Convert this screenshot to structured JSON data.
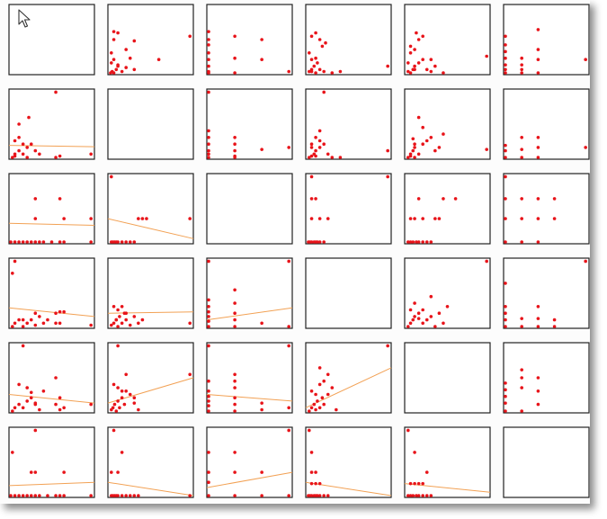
{
  "chart_data": {
    "type": "scatter-matrix",
    "title": "",
    "variables": [
      "",
      "",
      "",
      "",
      "",
      ""
    ],
    "grid": false,
    "colors": {
      "point": "#e8141a",
      "trend": "#f2a154",
      "border": "#222222",
      "panel": "#ffffff"
    },
    "cells": {
      "0-1": {
        "x": [
          0.01,
          0.03,
          0.05,
          0.08,
          0.1,
          0.15,
          0.2,
          0.3,
          0.02,
          0.02,
          0.05,
          0.1,
          0.05,
          0.3,
          0.6,
          0.98,
          0.1,
          0.2,
          0.25,
          0.05
        ],
        "y": [
          0.0,
          0.02,
          0.0,
          0.05,
          0.1,
          0.02,
          0.08,
          0.05,
          0.15,
          0.3,
          0.2,
          0.12,
          0.5,
          0.48,
          0.2,
          0.55,
          0.6,
          0.35,
          0.22,
          0.62
        ]
      },
      "0-2": {
        "x": [
          0,
          0,
          0,
          0,
          0,
          0,
          0,
          0,
          0.32,
          0.32,
          0.32,
          0.65,
          0.65,
          0.98
        ],
        "y": [
          0,
          0.1,
          0.2,
          0.3,
          0.42,
          0.5,
          0.62,
          0.02,
          0.0,
          0.22,
          0.55,
          0.2,
          0.5,
          0.02
        ]
      },
      "0-3": {
        "x": [
          0.02,
          0.05,
          0.08,
          0.1,
          0.15,
          0.2,
          0.3,
          0.4,
          0.05,
          0.1,
          0.12,
          0.18,
          0.22,
          0.05,
          0.1,
          0.15,
          0.02,
          0.98,
          0.05
        ],
        "y": [
          0.02,
          0.05,
          0.1,
          0.0,
          0.05,
          0.02,
          0.0,
          0.02,
          0.2,
          0.22,
          0.15,
          0.4,
          0.45,
          0.55,
          0.6,
          0.5,
          0.3,
          0.1,
          0.02
        ]
      },
      "0-4": {
        "x": [
          0.02,
          0.05,
          0.08,
          0.1,
          0.15,
          0.2,
          0.25,
          0.3,
          0.35,
          0.45,
          0.05,
          0.1,
          0.15,
          0.2,
          0.12,
          0.3,
          0.05,
          0.98,
          0.02,
          0.1
        ],
        "y": [
          0.02,
          0.0,
          0.05,
          0.1,
          0.15,
          0.2,
          0.05,
          0.02,
          0.1,
          0.0,
          0.3,
          0.35,
          0.5,
          0.55,
          0.6,
          0.2,
          0.4,
          0.25,
          0.15,
          0.05
        ]
      },
      "0-5": {
        "x": [
          0,
          0,
          0,
          0,
          0,
          0,
          0,
          0.2,
          0.2,
          0.2,
          0.2,
          0.4,
          0.4,
          0.4,
          0.4,
          0.98
        ],
        "y": [
          0,
          0.12,
          0.22,
          0.32,
          0.42,
          0.55,
          0.05,
          0,
          0.12,
          0.22,
          0.05,
          0,
          0.2,
          0.35,
          0.65,
          0.2
        ]
      },
      "1-0": {
        "x": [
          0.02,
          0.05,
          0.1,
          0.15,
          0.2,
          0.25,
          0.3,
          0.35,
          0.55,
          0.6,
          0.05,
          0.1,
          0.15,
          0.22,
          0.55,
          0.98,
          0.1,
          0.2,
          0.05
        ],
        "y": [
          0.0,
          0.05,
          0.1,
          0.05,
          0.15,
          0.2,
          0.1,
          0.05,
          0.0,
          0.02,
          0.25,
          0.3,
          0.2,
          0.6,
          0.98,
          0.05,
          0.5,
          0.0,
          0.02
        ],
        "trend": [
          0.18,
          0.16
        ]
      },
      "1-2": {
        "x": [
          0,
          0,
          0,
          0,
          0,
          0,
          0,
          0.32,
          0.32,
          0.32,
          0.32,
          0.65,
          0.98,
          0.32
        ],
        "y": [
          0,
          0.1,
          0.2,
          0.3,
          0.4,
          0.98,
          0.05,
          0,
          0.1,
          0.2,
          0.3,
          0.12,
          0.15,
          0.02
        ]
      },
      "1-3": {
        "x": [
          0.02,
          0.05,
          0.08,
          0.1,
          0.15,
          0.2,
          0.25,
          0.3,
          0.1,
          0.15,
          0.2,
          0.05,
          0.15,
          0.98,
          0.4,
          0.1,
          0.05
        ],
        "y": [
          0.0,
          0.02,
          0.05,
          0.1,
          0.15,
          0.2,
          0.05,
          0.0,
          0.3,
          0.25,
          0.98,
          0.15,
          0.4,
          0.1,
          0.0,
          0.02,
          0.2
        ]
      },
      "1-4": {
        "x": [
          0.02,
          0.05,
          0.08,
          0.1,
          0.15,
          0.2,
          0.25,
          0.3,
          0.35,
          0.4,
          0.45,
          0.05,
          0.1,
          0.15,
          0.2,
          0.98,
          0.1,
          0.08
        ],
        "y": [
          0.0,
          0.05,
          0.1,
          0.15,
          0.05,
          0.2,
          0.25,
          0.3,
          0.1,
          0.15,
          0.35,
          0.02,
          0.2,
          0.6,
          0.45,
          0.12,
          0.0,
          0.28
        ]
      },
      "1-5": {
        "x": [
          0,
          0,
          0,
          0.2,
          0.2,
          0.2,
          0.4,
          0.4,
          0.98,
          0.4
        ],
        "y": [
          0,
          0.1,
          0.18,
          0,
          0.12,
          0.3,
          0,
          0.15,
          0.15,
          0.3
        ]
      },
      "2-0": {
        "x": [
          0,
          0.05,
          0.1,
          0.15,
          0.2,
          0.25,
          0.3,
          0.35,
          0.4,
          0.5,
          0.6,
          0.98,
          0.3,
          0.3,
          0.65,
          0.6,
          0.98,
          0.65
        ],
        "y": [
          0,
          0,
          0,
          0,
          0,
          0,
          0,
          0,
          0,
          0,
          0,
          0,
          0.35,
          0.65,
          0.35,
          0.65,
          0.35,
          0
        ],
        "trend": [
          0.28,
          0.25
        ]
      },
      "2-1": {
        "x": [
          0.02,
          0.04,
          0.06,
          0.08,
          0.1,
          0.15,
          0.2,
          0.25,
          0.3,
          0.35,
          0.4,
          0.45,
          0.02,
          0.98
        ],
        "y": [
          0,
          0,
          0,
          0,
          0,
          0,
          0,
          0,
          0,
          0.35,
          0.35,
          0.35,
          0.98,
          0.35
        ],
        "trend": [
          0.35,
          0.05
        ]
      },
      "2-3": {
        "x": [
          0.01,
          0.03,
          0.05,
          0.08,
          0.1,
          0.12,
          0.15,
          0.2,
          0.05,
          0.15,
          0.25,
          0.05,
          0.1,
          0.05,
          0.98
        ],
        "y": [
          0,
          0,
          0,
          0,
          0,
          0,
          0,
          0,
          0.35,
          0.35,
          0.35,
          0.65,
          0.65,
          0.98,
          0.98
        ]
      },
      "2-4": {
        "x": [
          0.02,
          0.05,
          0.08,
          0.12,
          0.15,
          0.2,
          0.25,
          0.3,
          0.05,
          0.1,
          0.2,
          0.35,
          0.4,
          0.15,
          0.45,
          0.6
        ],
        "y": [
          0,
          0,
          0,
          0,
          0,
          0,
          0,
          0,
          0.35,
          0.35,
          0.35,
          0.35,
          0.35,
          0.65,
          0.65,
          0.65
        ]
      },
      "2-5": {
        "x": [
          0,
          0,
          0,
          0,
          0.2,
          0.2,
          0.2,
          0.4,
          0.4,
          0.4,
          0.6,
          0.6
        ],
        "y": [
          0,
          0.35,
          0.65,
          0.98,
          0,
          0.35,
          0.65,
          0,
          0.35,
          0.65,
          0.35,
          0.65
        ]
      },
      "3-0": {
        "x": [
          0.02,
          0.05,
          0.1,
          0.15,
          0.2,
          0.25,
          0.3,
          0.35,
          0.45,
          0.55,
          0.6,
          0.65,
          0.05,
          0.3,
          0.55,
          0.98,
          0.6,
          0.02,
          0.15,
          0.4
        ],
        "y": [
          0,
          0.05,
          0.1,
          0.0,
          0.05,
          0.1,
          0.02,
          0.15,
          0.1,
          0.2,
          0.05,
          0.22,
          0.98,
          0.2,
          0.05,
          0.02,
          0.22,
          0.8,
          0.1,
          0.05
        ],
        "trend": [
          0.28,
          0.15
        ]
      },
      "3-1": {
        "x": [
          0.02,
          0.05,
          0.08,
          0.1,
          0.12,
          0.15,
          0.18,
          0.2,
          0.25,
          0.3,
          0.35,
          0.4,
          0.05,
          0.1,
          0.15,
          0.2,
          0.98,
          0.08
        ],
        "y": [
          0.02,
          0.05,
          0.1,
          0.0,
          0.15,
          0.05,
          0.2,
          0.1,
          0.02,
          0.15,
          0.05,
          0.1,
          0.3,
          0.25,
          0.3,
          0.2,
          0.05,
          0.1
        ],
        "trend": [
          0.2,
          0.22
        ]
      },
      "3-2": {
        "x": [
          0,
          0,
          0,
          0,
          0,
          0,
          0,
          0.32,
          0.32,
          0.32,
          0.32,
          0.32,
          0.65,
          0.98,
          0.98
        ],
        "y": [
          0,
          0.08,
          0.15,
          0.22,
          0.3,
          0.4,
          0.98,
          0,
          0.1,
          0.2,
          0.35,
          0.55,
          0.05,
          0,
          0.98
        ],
        "trend": [
          0.1,
          0.28
        ]
      },
      "3-4": {
        "x": [
          0.02,
          0.05,
          0.08,
          0.1,
          0.15,
          0.2,
          0.25,
          0.3,
          0.35,
          0.4,
          0.45,
          0.5,
          0.1,
          0.2,
          0.3,
          0.98,
          0.15,
          0.05
        ],
        "y": [
          0,
          0.05,
          0.1,
          0.15,
          0.2,
          0.05,
          0.1,
          0.15,
          0.0,
          0.2,
          0.05,
          0.3,
          0.35,
          0.25,
          0.45,
          0.98,
          0.12,
          0.25
        ]
      },
      "3-5": {
        "x": [
          0,
          0,
          0,
          0,
          0.2,
          0.2,
          0.4,
          0.4,
          0.4,
          0.6,
          0.6,
          0.98,
          0
        ],
        "y": [
          0,
          0.1,
          0.2,
          0.3,
          0,
          0.12,
          0,
          0.12,
          0.3,
          0,
          0.1,
          0.98,
          0.65
        ]
      },
      "4-0": {
        "x": [
          0.02,
          0.05,
          0.1,
          0.15,
          0.2,
          0.25,
          0.3,
          0.35,
          0.4,
          0.55,
          0.6,
          0.65,
          0.1,
          0.2,
          0.25,
          0.55,
          0.15,
          0.98,
          0.6,
          0.3
        ],
        "y": [
          0.0,
          0.05,
          0.1,
          0.05,
          0.15,
          0.2,
          0.1,
          0.02,
          0.3,
          0.1,
          0.2,
          0.05,
          0.4,
          0.35,
          0.28,
          0.5,
          0.98,
          0.1,
          0.02,
          0.12
        ],
        "trend": [
          0.25,
          0.12
        ]
      },
      "4-1": {
        "x": [
          0.02,
          0.04,
          0.06,
          0.08,
          0.1,
          0.12,
          0.15,
          0.18,
          0.2,
          0.25,
          0.3,
          0.35,
          0.05,
          0.1,
          0.15,
          0.2,
          0.1,
          0.98,
          0.3
        ],
        "y": [
          0.02,
          0.05,
          0.1,
          0.0,
          0.15,
          0.05,
          0.2,
          0.1,
          0.3,
          0.25,
          0.2,
          0.02,
          0.4,
          0.35,
          0.3,
          0.55,
          0.98,
          0.55,
          0.12
        ],
        "trend": [
          0.12,
          0.5
        ]
      },
      "4-2": {
        "x": [
          0,
          0,
          0,
          0,
          0,
          0,
          0,
          0.32,
          0.32,
          0.32,
          0.32,
          0.32,
          0.32,
          0.65,
          0.65,
          0.98,
          0.98
        ],
        "y": [
          0,
          0.08,
          0.15,
          0.22,
          0.3,
          0.45,
          0.98,
          0,
          0.1,
          0.2,
          0.35,
          0.45,
          0.55,
          0.02,
          0.12,
          0.05,
          0.98
        ],
        "trend": [
          0.25,
          0.15
        ]
      },
      "4-3": {
        "x": [
          0.02,
          0.05,
          0.08,
          0.1,
          0.12,
          0.15,
          0.18,
          0.2,
          0.25,
          0.3,
          0.05,
          0.1,
          0.15,
          0.2,
          0.25,
          0.15,
          0.98,
          0.35
        ],
        "y": [
          0,
          0.05,
          0.1,
          0.02,
          0.15,
          0.05,
          0.2,
          0.1,
          0.25,
          0.35,
          0.3,
          0.25,
          0.4,
          0.45,
          0.55,
          0.65,
          0.98,
          0.02
        ],
        "trend": [
          0.05,
          0.65
        ]
      },
      "4-5": {
        "x": [
          0,
          0,
          0,
          0,
          0,
          0.2,
          0.2,
          0.2,
          0.2,
          0.4,
          0.4,
          0.4
        ],
        "y": [
          0,
          0.12,
          0.22,
          0.32,
          0.42,
          0,
          0.35,
          0.5,
          0.62,
          0.1,
          0.3,
          0.5
        ]
      },
      "5-0": {
        "x": [
          0,
          0.05,
          0.1,
          0.15,
          0.2,
          0.25,
          0.3,
          0.35,
          0.45,
          0.55,
          0.6,
          0.65,
          0.3,
          0.3,
          0.65,
          0.98,
          0.25,
          0.02
        ],
        "y": [
          0,
          0,
          0,
          0,
          0,
          0,
          0,
          0,
          0,
          0,
          0,
          0,
          0.35,
          0.98,
          0.35,
          0,
          0.35,
          0.65
        ],
        "trend": [
          0.15,
          0.2
        ]
      },
      "5-1": {
        "x": [
          0.02,
          0.04,
          0.06,
          0.08,
          0.1,
          0.15,
          0.2,
          0.25,
          0.3,
          0.35,
          0.02,
          0.1,
          0.15,
          0.05,
          0.98
        ],
        "y": [
          0,
          0,
          0,
          0,
          0,
          0,
          0,
          0,
          0,
          0,
          0.35,
          0.35,
          0.65,
          0.98,
          0
        ],
        "trend": [
          0.2,
          0.0
        ]
      },
      "5-2": {
        "x": [
          0,
          0,
          0,
          0,
          0.32,
          0.32,
          0.32,
          0.65,
          0.65,
          0.98,
          0.98
        ],
        "y": [
          0,
          0.35,
          0.65,
          0.2,
          0,
          0.35,
          0.65,
          0,
          0.35,
          0,
          0.98
        ],
        "trend": [
          0.12,
          0.35
        ]
      },
      "5-3": {
        "x": [
          0.01,
          0.03,
          0.05,
          0.08,
          0.1,
          0.12,
          0.15,
          0.2,
          0.05,
          0.1,
          0.15,
          0.05,
          0.1,
          0.05,
          0.02,
          0.25
        ],
        "y": [
          0,
          0,
          0,
          0,
          0,
          0,
          0,
          0,
          0.18,
          0.18,
          0.18,
          0.35,
          0.35,
          0.65,
          0.98,
          0
        ],
        "trend": [
          0.2,
          0.0
        ]
      },
      "5-4": {
        "x": [
          0.02,
          0.05,
          0.08,
          0.12,
          0.15,
          0.2,
          0.25,
          0.3,
          0.05,
          0.1,
          0.15,
          0.2,
          0.25,
          0.1,
          0.02
        ],
        "y": [
          0,
          0,
          0,
          0,
          0,
          0,
          0,
          0,
          0.18,
          0.18,
          0.18,
          0.18,
          0.35,
          0.65,
          0.98
        ],
        "trend": [
          0.18,
          0.05
        ]
      }
    }
  }
}
